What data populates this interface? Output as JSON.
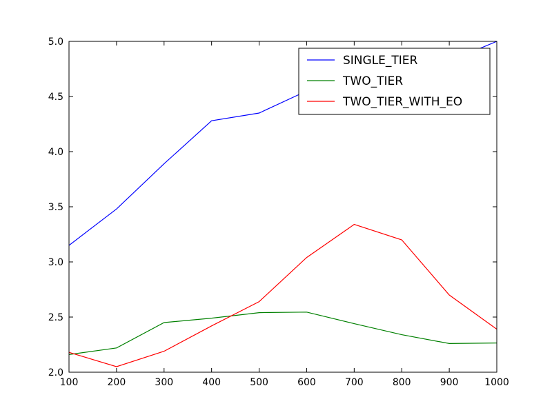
{
  "chart_data": {
    "type": "line",
    "title": "",
    "xlabel": "",
    "ylabel": "",
    "xlim": [
      100,
      1000
    ],
    "ylim": [
      2.0,
      5.0
    ],
    "x_ticks": [
      100,
      200,
      300,
      400,
      500,
      600,
      700,
      800,
      900,
      1000
    ],
    "x_tick_labels": [
      "100",
      "200",
      "300",
      "400",
      "500",
      "600",
      "700",
      "800",
      "900",
      "1000"
    ],
    "y_ticks": [
      2.0,
      2.5,
      3.0,
      3.5,
      4.0,
      4.5,
      5.0
    ],
    "y_tick_labels": [
      "2.0",
      "2.5",
      "3.0",
      "3.5",
      "4.0",
      "4.5",
      "5.0"
    ],
    "grid": false,
    "legend_position": "top-right",
    "x": [
      100,
      200,
      300,
      400,
      500,
      600,
      700,
      800,
      900,
      1000
    ],
    "series": [
      {
        "name": "SINGLE_TIER",
        "color": "#0000ff",
        "values": [
          3.15,
          3.48,
          3.89,
          4.28,
          4.35,
          4.55,
          4.75,
          4.8,
          4.82,
          5.0
        ]
      },
      {
        "name": "TWO_TIER",
        "color": "#008000",
        "values": [
          2.16,
          2.22,
          2.45,
          2.49,
          2.54,
          2.545,
          2.44,
          2.34,
          2.26,
          2.265
        ]
      },
      {
        "name": "TWO_TIER_WITH_EO",
        "color": "#ff0000",
        "values": [
          2.18,
          2.05,
          2.19,
          2.42,
          2.64,
          3.04,
          3.34,
          3.2,
          2.7,
          2.39
        ]
      }
    ]
  }
}
